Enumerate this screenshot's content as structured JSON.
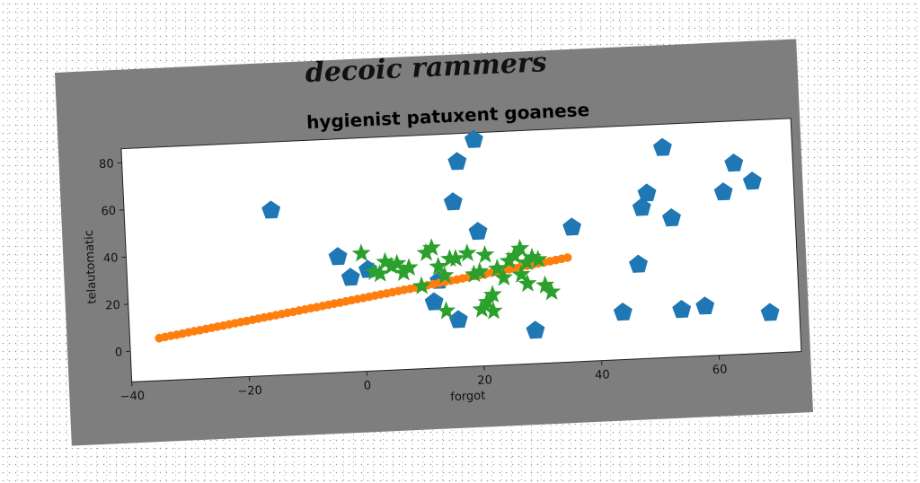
{
  "chart_data": {
    "type": "scatter",
    "suptitle": "decoic rammers",
    "title": "hygienist patuxent goanese",
    "xlabel": "forgot",
    "ylabel": "telautomatic",
    "xlim": [
      -40,
      74
    ],
    "ylim": [
      -13,
      86
    ],
    "xticks": [
      -40,
      -20,
      0,
      20,
      40,
      60
    ],
    "yticks": [
      0,
      20,
      40,
      60,
      80
    ],
    "grid": false,
    "legend": "none",
    "series": [
      {
        "marker": "pentagon",
        "color": "#1f77b4",
        "points": [
          [
            -15,
            57
          ],
          [
            -4,
            36
          ],
          [
            -2,
            27
          ],
          [
            1,
            30
          ],
          [
            13,
            24
          ],
          [
            12,
            15
          ],
          [
            16,
            57
          ],
          [
            17,
            74
          ],
          [
            20,
            83
          ],
          [
            20,
            44
          ],
          [
            16,
            7
          ],
          [
            29,
            1
          ],
          [
            36,
            44
          ],
          [
            44,
            7
          ],
          [
            47,
            27
          ],
          [
            48,
            51
          ],
          [
            49,
            57
          ],
          [
            52,
            76
          ],
          [
            53,
            46
          ],
          [
            54,
            7
          ],
          [
            58,
            8
          ],
          [
            62,
            56
          ],
          [
            64,
            68
          ],
          [
            67,
            60
          ],
          [
            69,
            4
          ]
        ]
      },
      {
        "marker": "circle",
        "color": "#ff7f0e",
        "points": [
          [
            -35,
            5.0
          ],
          [
            -34,
            5.4
          ],
          [
            -33,
            5.8
          ],
          [
            -32,
            6.1
          ],
          [
            -31,
            6.5
          ],
          [
            -30,
            6.9
          ],
          [
            -29,
            7.3
          ],
          [
            -28,
            7.6
          ],
          [
            -27,
            8.0
          ],
          [
            -26,
            8.4
          ],
          [
            -25,
            8.8
          ],
          [
            -24,
            9.1
          ],
          [
            -23,
            9.5
          ],
          [
            -22,
            9.9
          ],
          [
            -21,
            10.3
          ],
          [
            -20,
            10.6
          ],
          [
            -19,
            11.0
          ],
          [
            -18,
            11.4
          ],
          [
            -17,
            11.8
          ],
          [
            -16,
            12.1
          ],
          [
            -15,
            12.5
          ],
          [
            -14,
            12.9
          ],
          [
            -13,
            13.3
          ],
          [
            -12,
            13.6
          ],
          [
            -11,
            14.0
          ],
          [
            -10,
            14.4
          ],
          [
            -9,
            14.8
          ],
          [
            -8,
            15.1
          ],
          [
            -7,
            15.5
          ],
          [
            -6,
            15.9
          ],
          [
            -5,
            16.3
          ],
          [
            -4,
            16.6
          ],
          [
            -3,
            17.0
          ],
          [
            -2,
            17.4
          ],
          [
            -1,
            17.8
          ],
          [
            0,
            18.1
          ],
          [
            1,
            18.5
          ],
          [
            2,
            18.9
          ],
          [
            3,
            19.3
          ],
          [
            4,
            19.6
          ],
          [
            5,
            20.0
          ],
          [
            6,
            20.4
          ],
          [
            7,
            20.8
          ],
          [
            8,
            21.1
          ],
          [
            9,
            21.5
          ],
          [
            10,
            21.9
          ],
          [
            11,
            22.3
          ],
          [
            12,
            22.6
          ],
          [
            13,
            23.0
          ],
          [
            14,
            23.4
          ],
          [
            15,
            23.8
          ],
          [
            16,
            24.1
          ],
          [
            17,
            24.5
          ],
          [
            18,
            24.9
          ],
          [
            19,
            25.3
          ],
          [
            20,
            25.6
          ],
          [
            21,
            26.0
          ],
          [
            22,
            26.4
          ],
          [
            23,
            26.8
          ],
          [
            24,
            27.1
          ],
          [
            25,
            27.5
          ],
          [
            26,
            27.9
          ],
          [
            27,
            28.3
          ],
          [
            28,
            28.6
          ],
          [
            29,
            29.0
          ],
          [
            30,
            29.4
          ],
          [
            31,
            29.8
          ],
          [
            32,
            30.1
          ],
          [
            33,
            30.5
          ],
          [
            34,
            30.9
          ],
          [
            35,
            31.3
          ]
        ]
      },
      {
        "marker": "star",
        "color": "#2ca02c",
        "points": [
          [
            0,
            37
          ],
          [
            2,
            29
          ],
          [
            3,
            28
          ],
          [
            4,
            33
          ],
          [
            5,
            31
          ],
          [
            6,
            32
          ],
          [
            7,
            28
          ],
          [
            8,
            30
          ],
          [
            10,
            22
          ],
          [
            11,
            36
          ],
          [
            12,
            38
          ],
          [
            13,
            30
          ],
          [
            14,
            26
          ],
          [
            15,
            33
          ],
          [
            16,
            33
          ],
          [
            18,
            35
          ],
          [
            19,
            26
          ],
          [
            20,
            27
          ],
          [
            21,
            34
          ],
          [
            21,
            14
          ],
          [
            22,
            17
          ],
          [
            23,
            28
          ],
          [
            24,
            24
          ],
          [
            25,
            31
          ],
          [
            26,
            33
          ],
          [
            27,
            25
          ],
          [
            27,
            36
          ],
          [
            28,
            21
          ],
          [
            28,
            30
          ],
          [
            29,
            32
          ],
          [
            30,
            31
          ],
          [
            31,
            20
          ],
          [
            32,
            17
          ],
          [
            20,
            11
          ],
          [
            22,
            10
          ],
          [
            14,
            11
          ]
        ]
      }
    ]
  }
}
